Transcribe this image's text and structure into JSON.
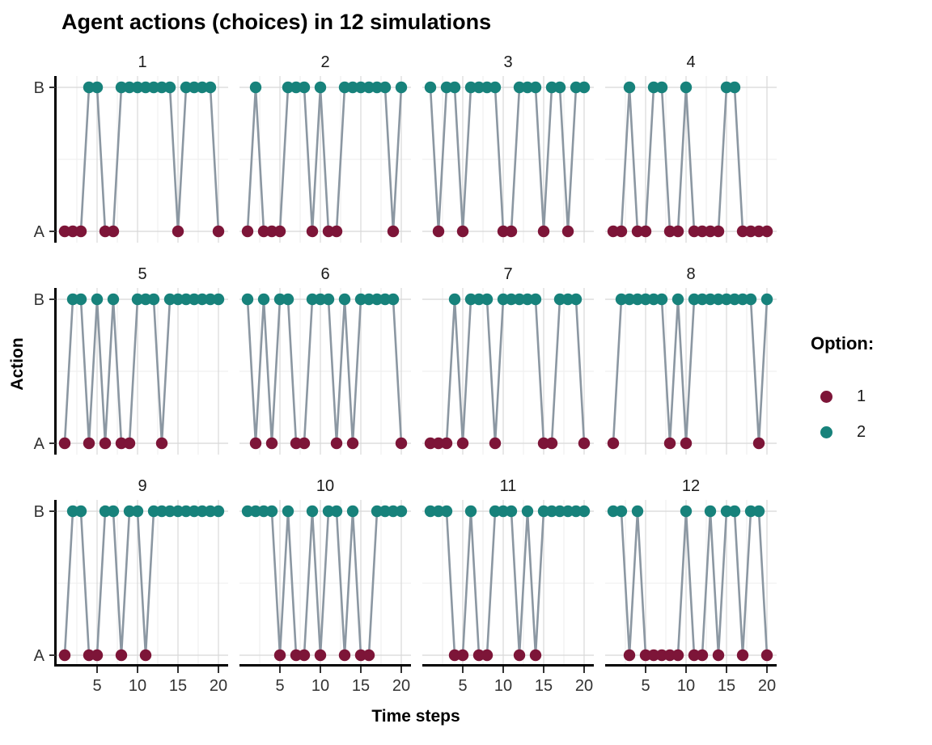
{
  "title": "Agent actions (choices) in 12 simulations",
  "axes": {
    "x_label": "Time steps",
    "y_label": "Action",
    "x_ticks": [
      5,
      10,
      15,
      20
    ],
    "y_categories": [
      "A",
      "B"
    ]
  },
  "legend": {
    "title": "Option:",
    "items": [
      {
        "label": "1",
        "color": "#7D1538"
      },
      {
        "label": "2",
        "color": "#17827B"
      }
    ]
  },
  "style": {
    "point_color_option1": "#7D1538",
    "point_color_option2": "#17827B",
    "line_color": "#8B97A2",
    "grid_major": "#D8D8D8",
    "grid_minor": "#EDEDED",
    "axis_color": "#000000",
    "tick_color": "#333333"
  },
  "chart_data": {
    "type": "line",
    "title": "Agent actions (choices) in 12 simulations",
    "xlabel": "Time steps",
    "ylabel": "Action",
    "x_range": [
      1,
      20
    ],
    "x_ticks": [
      5,
      10,
      15,
      20
    ],
    "y_categories": [
      "A",
      "B"
    ],
    "option_to_action": {
      "1": "A",
      "2": "B"
    },
    "legend_title": "Option:",
    "legend_position": "right",
    "grid": "major and minor, light gray",
    "facets": [
      {
        "label": "1",
        "options": [
          1,
          1,
          1,
          2,
          2,
          1,
          1,
          2,
          2,
          2,
          2,
          2,
          2,
          2,
          1,
          2,
          2,
          2,
          2,
          1
        ]
      },
      {
        "label": "2",
        "options": [
          1,
          2,
          1,
          1,
          1,
          2,
          2,
          2,
          1,
          2,
          1,
          1,
          2,
          2,
          2,
          2,
          2,
          2,
          1,
          2
        ]
      },
      {
        "label": "3",
        "options": [
          2,
          1,
          2,
          2,
          1,
          2,
          2,
          2,
          2,
          1,
          1,
          2,
          2,
          2,
          1,
          2,
          2,
          1,
          2,
          2
        ]
      },
      {
        "label": "4",
        "options": [
          1,
          1,
          2,
          1,
          1,
          2,
          2,
          1,
          1,
          2,
          1,
          1,
          1,
          1,
          2,
          2,
          1,
          1,
          1,
          1
        ]
      },
      {
        "label": "5",
        "options": [
          1,
          2,
          2,
          1,
          2,
          1,
          2,
          1,
          1,
          2,
          2,
          2,
          1,
          2,
          2,
          2,
          2,
          2,
          2,
          2
        ]
      },
      {
        "label": "6",
        "options": [
          2,
          1,
          2,
          1,
          2,
          2,
          1,
          1,
          2,
          2,
          2,
          1,
          2,
          1,
          2,
          2,
          2,
          2,
          2,
          1
        ]
      },
      {
        "label": "7",
        "options": [
          1,
          1,
          1,
          2,
          1,
          2,
          2,
          2,
          1,
          2,
          2,
          2,
          2,
          2,
          1,
          1,
          2,
          2,
          2,
          1
        ]
      },
      {
        "label": "8",
        "options": [
          1,
          2,
          2,
          2,
          2,
          2,
          2,
          1,
          2,
          1,
          2,
          2,
          2,
          2,
          2,
          2,
          2,
          2,
          1,
          2
        ]
      },
      {
        "label": "9",
        "options": [
          1,
          2,
          2,
          1,
          1,
          2,
          2,
          1,
          2,
          2,
          1,
          2,
          2,
          2,
          2,
          2,
          2,
          2,
          2,
          2
        ]
      },
      {
        "label": "10",
        "options": [
          2,
          2,
          2,
          2,
          1,
          2,
          1,
          1,
          2,
          1,
          2,
          2,
          1,
          2,
          1,
          1,
          2,
          2,
          2,
          2
        ]
      },
      {
        "label": "11",
        "options": [
          2,
          2,
          2,
          1,
          1,
          2,
          1,
          1,
          2,
          2,
          2,
          1,
          2,
          1,
          2,
          2,
          2,
          2,
          2,
          2
        ]
      },
      {
        "label": "12",
        "options": [
          2,
          2,
          1,
          2,
          1,
          1,
          1,
          1,
          1,
          2,
          1,
          1,
          2,
          1,
          2,
          2,
          1,
          2,
          2,
          1
        ]
      }
    ]
  }
}
